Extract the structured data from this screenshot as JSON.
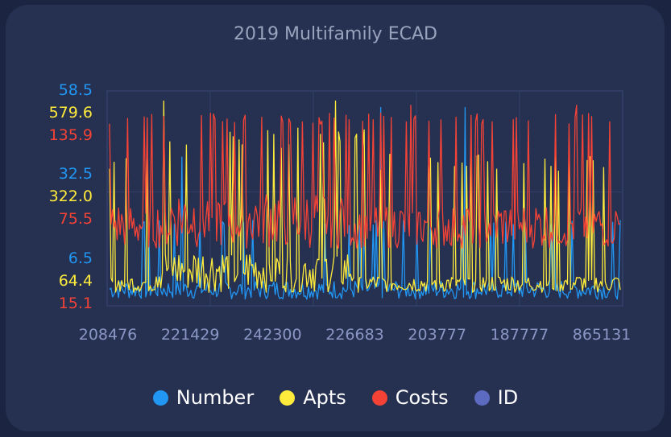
{
  "chart_data": {
    "type": "line",
    "title": "2019 Multifamily ECAD",
    "x_tick_labels": [
      "208476",
      "221429",
      "242300",
      "226683",
      "203777",
      "187777",
      "865131"
    ],
    "y_axes": [
      {
        "series": "Number",
        "color": "#2196f3",
        "range": [
          0,
          65
        ],
        "tick_labels": [
          "58.5",
          "32.5",
          "6.5"
        ],
        "tick_values": [
          58.5,
          32.5,
          6.5
        ]
      },
      {
        "series": "Apts",
        "color": "#ffeb3b",
        "range": [
          0,
          640
        ],
        "tick_labels": [
          "579.6",
          "322.0",
          "64.4"
        ],
        "tick_values": [
          579.6,
          322.0,
          64.4
        ]
      },
      {
        "series": "Costs",
        "color": "#f44336",
        "range": [
          0,
          150
        ],
        "tick_labels": [
          "135.9",
          "75.5",
          "15.1"
        ],
        "tick_values": [
          135.9,
          75.5,
          15.1
        ]
      }
    ],
    "series": [
      {
        "name": "Number",
        "color": "#2196f3",
        "axis": 0,
        "approx_baseline": 4,
        "approx_peak": 58.5
      },
      {
        "name": "Apts",
        "color": "#ffeb3b",
        "axis": 1,
        "approx_baseline": 60,
        "approx_peak": 600
      },
      {
        "name": "Costs",
        "color": "#f44336",
        "axis": 2,
        "approx_baseline": 50,
        "approx_peak": 140
      },
      {
        "name": "ID",
        "color": "#5c6bc0"
      }
    ],
    "legend": "bottom",
    "grid": true
  },
  "legend": [
    {
      "label": "Number",
      "color": "#2196f3"
    },
    {
      "label": "Apts",
      "color": "#ffeb3b"
    },
    {
      "label": "Costs",
      "color": "#f44336"
    },
    {
      "label": "ID",
      "color": "#5c6bc0"
    }
  ]
}
